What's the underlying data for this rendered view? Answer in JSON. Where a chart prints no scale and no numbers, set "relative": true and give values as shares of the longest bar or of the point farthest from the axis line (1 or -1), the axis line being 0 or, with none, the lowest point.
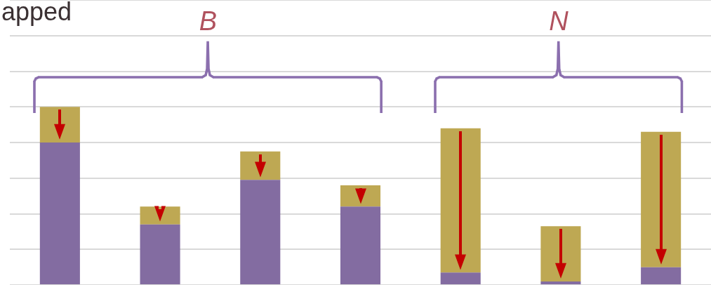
{
  "chart_data": {
    "type": "bar",
    "title": "apped",
    "categories": [
      null,
      null,
      null,
      null,
      null,
      null,
      null
    ],
    "relative": true,
    "stacked": true,
    "grid": "y",
    "legend": false,
    "tick_labels": false,
    "series": [
      {
        "color": "#836ca1",
        "values": [
          0.8,
          0.34,
          0.59,
          0.44,
          0.07,
          0.02,
          0.1
        ]
      },
      {
        "color": "#bea853",
        "values": [
          0.2,
          0.1,
          0.16,
          0.12,
          0.81,
          0.31,
          0.76
        ]
      }
    ],
    "annotations": [
      "B",
      "N"
    ]
  }
}
